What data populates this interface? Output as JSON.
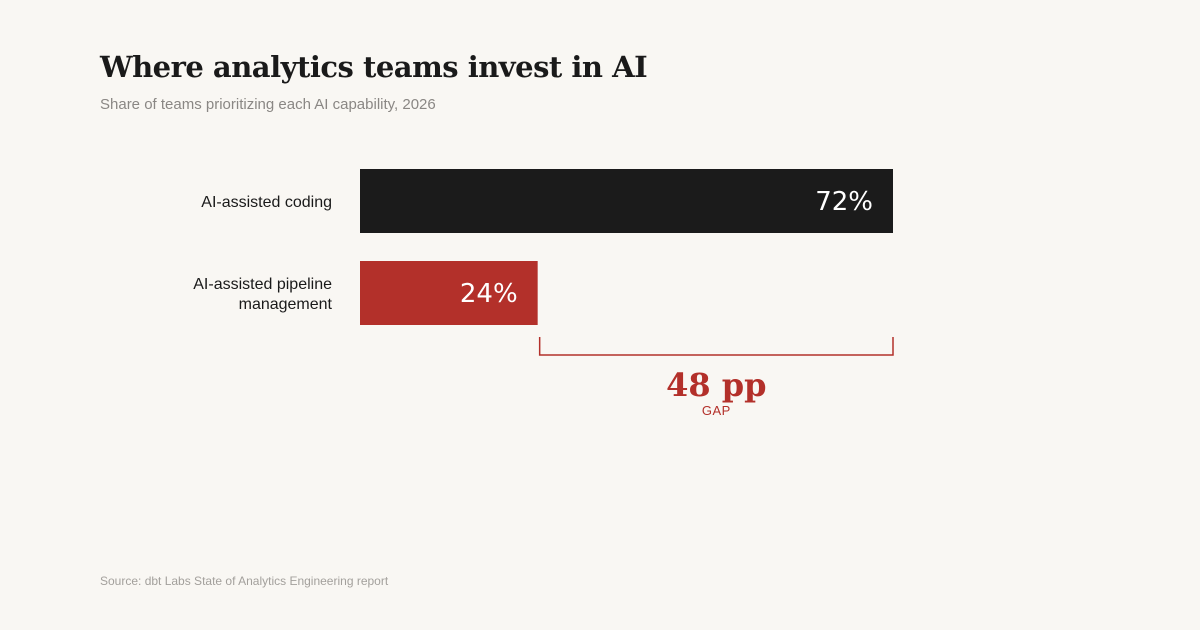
{
  "title": "Where analytics teams invest in AI",
  "subtitle": "Share of teams prioritizing each AI capability, 2026",
  "source": "Source: dbt Labs State of Analytics Engineering report",
  "colors": {
    "background": "#f9f7f3",
    "primary_bar": "#1b1b1b",
    "accent": "#b3302a"
  },
  "chart_data": {
    "type": "bar",
    "orientation": "horizontal",
    "categories": [
      [
        "AI-assisted coding"
      ],
      [
        "AI-assisted pipeline",
        "management"
      ]
    ],
    "values": [
      72,
      24
    ],
    "value_labels": [
      "72%",
      "24%"
    ],
    "bar_colors": [
      "#1b1b1b",
      "#b3302a"
    ],
    "annotation": {
      "value": "48 pp",
      "label": "GAP",
      "from": 24,
      "to": 72
    }
  }
}
